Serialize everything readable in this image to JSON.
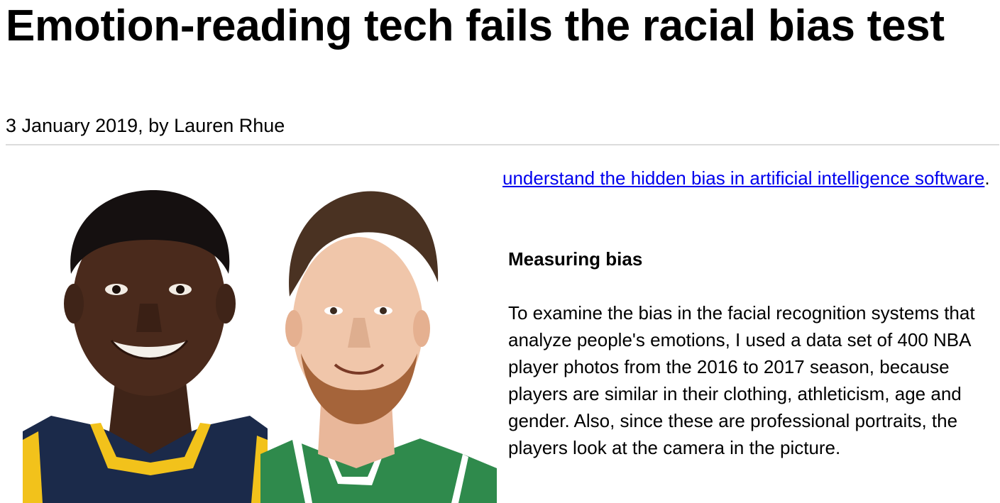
{
  "article": {
    "title": "Emotion-reading tech fails the racial bias test",
    "byline": "3 January 2019, by Lauren Rhue",
    "lead_link_text": "understand the hidden bias in artificial intelligence software",
    "lead_suffix": ".",
    "subheading": "Measuring bias",
    "paragraph": "To examine the bias in the facial recognition systems that analyze people's emotions, I used a data set of 400 NBA player photos from the 2016 to 2017 season, because players are similar in their clothing, athleticism, age and gender. Also, since these are professional portraits, the players look at the camera in the picture."
  },
  "figure": {
    "jersey_left_color": "#1b2a4a",
    "jersey_left_trim": "#f2c21b",
    "jersey_right_color": "#2f8a4c",
    "jersey_right_trim": "#ffffff"
  }
}
